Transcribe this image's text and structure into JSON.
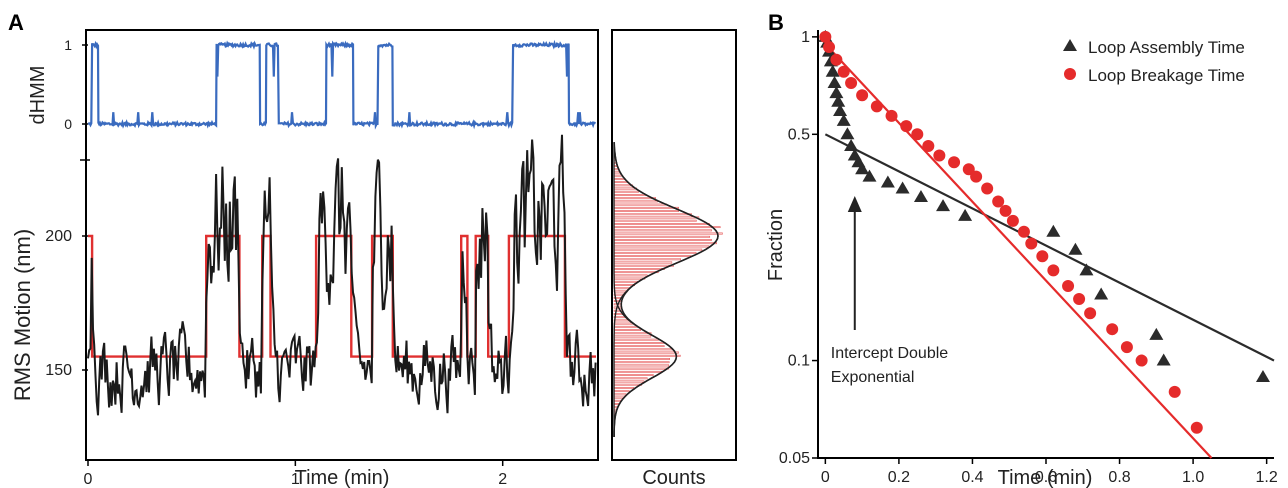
{
  "panels": {
    "a_label": "A",
    "b_label": "B"
  },
  "colors": {
    "dhmm": "#3a6bbf",
    "trace": "#1a1a1a",
    "hmm_fit": "#e03030",
    "assembly": "#2b2b2b",
    "breakage": "#e52b2b",
    "hist_fill": "#f6c6c6",
    "hist_edge": "#e03030"
  },
  "chart_data": [
    {
      "id": "dhmm",
      "type": "line",
      "ylabel": "dHMM",
      "yticks": [
        "0",
        "1"
      ],
      "ylim": [
        0,
        1
      ],
      "xlim": [
        0,
        2.45
      ],
      "segments": [
        [
          0.0,
          0
        ],
        [
          0.02,
          1
        ],
        [
          0.05,
          0
        ],
        [
          0.62,
          1
        ],
        [
          0.83,
          0
        ],
        [
          0.86,
          1
        ],
        [
          0.92,
          0
        ],
        [
          1.15,
          1
        ],
        [
          1.28,
          0
        ],
        [
          1.4,
          1
        ],
        [
          1.47,
          0
        ],
        [
          2.05,
          1
        ],
        [
          2.32,
          0
        ],
        [
          2.45,
          0
        ]
      ]
    },
    {
      "id": "rms",
      "type": "line",
      "xlabel": "Time (min)",
      "ylabel": "RMS Motion (nm)",
      "xticks": [
        "0",
        "1",
        "2"
      ],
      "yticks": [
        "150",
        "200"
      ],
      "xlim": [
        0,
        2.45
      ],
      "ylim": [
        130,
        230
      ],
      "hmm_levels": [
        155,
        200
      ],
      "hmm_states": [
        [
          0.0,
          200
        ],
        [
          0.02,
          155
        ],
        [
          0.57,
          200
        ],
        [
          0.73,
          155
        ],
        [
          0.84,
          200
        ],
        [
          0.88,
          155
        ],
        [
          1.1,
          200
        ],
        [
          1.27,
          155
        ],
        [
          1.37,
          200
        ],
        [
          1.47,
          155
        ],
        [
          1.8,
          200
        ],
        [
          1.83,
          155
        ],
        [
          1.87,
          200
        ],
        [
          1.93,
          155
        ],
        [
          2.03,
          200
        ],
        [
          2.3,
          155
        ],
        [
          2.45,
          200
        ]
      ]
    },
    {
      "id": "hist",
      "type": "bar",
      "xlabel": "Counts",
      "gauss_centers": [
        155,
        200
      ],
      "gauss_sigmas": [
        8,
        10
      ],
      "gauss_amps": [
        0.6,
        1.0
      ]
    },
    {
      "id": "decay",
      "type": "scatter",
      "xlabel": "Time (min)",
      "ylabel": "Fraction",
      "xticks": [
        "0",
        "0.2",
        "0.4",
        "0.6",
        "0.8",
        "1.0",
        "1.2"
      ],
      "ytick_values": [
        0.05,
        0.1,
        0.5,
        1
      ],
      "ytick_labels": [
        "0.05",
        "0.1",
        "0.5",
        "1"
      ],
      "xlim": [
        -0.02,
        1.22
      ],
      "ylim": [
        0.05,
        1.05
      ],
      "legend_placement": "top-right",
      "annotation": [
        "Intercept Double",
        "Exponential"
      ],
      "series": [
        {
          "name": "Loop Assembly Time",
          "marker": "triangle",
          "points": [
            [
              0.0,
              1.0
            ],
            [
              0.005,
              0.96
            ],
            [
              0.01,
              0.9
            ],
            [
              0.015,
              0.84
            ],
            [
              0.02,
              0.78
            ],
            [
              0.025,
              0.72
            ],
            [
              0.03,
              0.67
            ],
            [
              0.035,
              0.63
            ],
            [
              0.04,
              0.59
            ],
            [
              0.05,
              0.55
            ],
            [
              0.06,
              0.5
            ],
            [
              0.07,
              0.46
            ],
            [
              0.08,
              0.43
            ],
            [
              0.09,
              0.41
            ],
            [
              0.1,
              0.39
            ],
            [
              0.12,
              0.37
            ],
            [
              0.17,
              0.355
            ],
            [
              0.21,
              0.34
            ],
            [
              0.26,
              0.32
            ],
            [
              0.32,
              0.3
            ],
            [
              0.38,
              0.28
            ],
            [
              0.62,
              0.25
            ],
            [
              0.68,
              0.22
            ],
            [
              0.71,
              0.19
            ],
            [
              0.75,
              0.16
            ],
            [
              0.9,
              0.12
            ],
            [
              0.92,
              0.1
            ],
            [
              1.19,
              0.089
            ]
          ],
          "fit": [
            [
              0.0,
              0.5
            ],
            [
              1.22,
              0.1
            ]
          ]
        },
        {
          "name": "Loop Breakage Time",
          "marker": "circle",
          "points": [
            [
              0.0,
              1.0
            ],
            [
              0.01,
              0.93
            ],
            [
              0.03,
              0.85
            ],
            [
              0.05,
              0.78
            ],
            [
              0.07,
              0.72
            ],
            [
              0.1,
              0.66
            ],
            [
              0.14,
              0.61
            ],
            [
              0.18,
              0.57
            ],
            [
              0.22,
              0.53
            ],
            [
              0.25,
              0.5
            ],
            [
              0.28,
              0.46
            ],
            [
              0.31,
              0.43
            ],
            [
              0.35,
              0.41
            ],
            [
              0.39,
              0.39
            ],
            [
              0.41,
              0.37
            ],
            [
              0.44,
              0.34
            ],
            [
              0.47,
              0.31
            ],
            [
              0.49,
              0.29
            ],
            [
              0.51,
              0.27
            ],
            [
              0.54,
              0.25
            ],
            [
              0.56,
              0.23
            ],
            [
              0.59,
              0.21
            ],
            [
              0.62,
              0.19
            ],
            [
              0.66,
              0.17
            ],
            [
              0.69,
              0.155
            ],
            [
              0.72,
              0.14
            ],
            [
              0.78,
              0.125
            ],
            [
              0.82,
              0.11
            ],
            [
              0.86,
              0.1
            ],
            [
              0.95,
              0.08
            ],
            [
              1.01,
              0.062
            ]
          ],
          "fit": [
            [
              0.0,
              0.95
            ],
            [
              1.05,
              0.05
            ]
          ]
        }
      ]
    }
  ]
}
